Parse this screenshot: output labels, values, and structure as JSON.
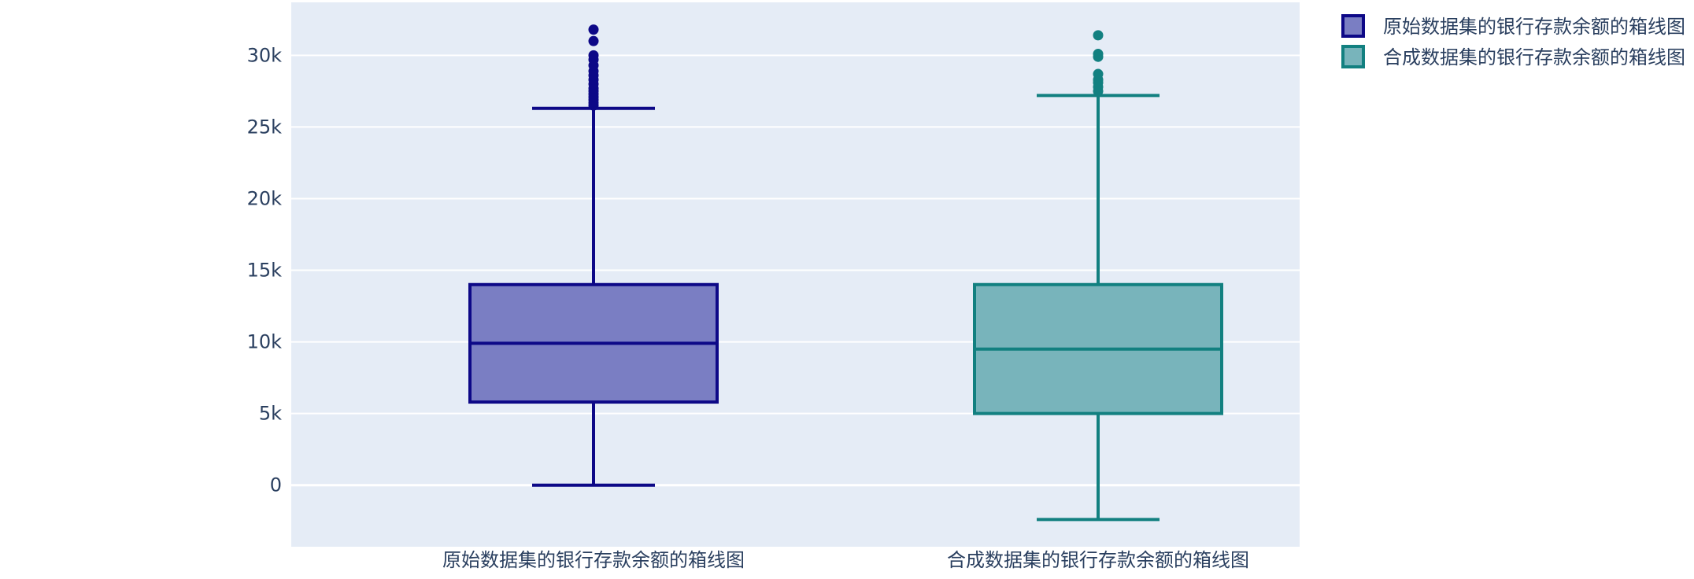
{
  "chart_data": {
    "type": "box",
    "title": "",
    "xlabel": "",
    "ylabel": "",
    "ylim": [
      -4300,
      33700
    ],
    "yticks": [
      0,
      5000,
      10000,
      15000,
      20000,
      25000,
      30000
    ],
    "ytick_labels": [
      "0",
      "5k",
      "10k",
      "15k",
      "20k",
      "25k",
      "30k"
    ],
    "grid": true,
    "legend_position": "top-right",
    "background": "#e5ecf6",
    "series": [
      {
        "name": "原始数据集的银行存款余额的箱线图",
        "category": "原始数据集的银行存款余额的箱线图",
        "lower_whisker": 0,
        "q1": 5800,
        "median": 9900,
        "q3": 14000,
        "upper_whisker": 26300,
        "outliers": [
          26500,
          26700,
          26900,
          27100,
          27300,
          27500,
          27700,
          28000,
          28300,
          28600,
          28900,
          29300,
          29700,
          30000,
          31000,
          31800
        ],
        "line_color": "#0d0887",
        "fill_color": "#7a7ec3"
      },
      {
        "name": "合成数据集的银行存款余额的箱线图",
        "category": "合成数据集的银行存款余额的箱线图",
        "lower_whisker": -2400,
        "q1": 5000,
        "median": 9500,
        "q3": 14000,
        "upper_whisker": 27200,
        "outliers": [
          27500,
          27800,
          28100,
          28300,
          28700,
          29900,
          30100,
          31400
        ],
        "line_color": "#128080",
        "fill_color": "#78b4bb"
      }
    ]
  }
}
